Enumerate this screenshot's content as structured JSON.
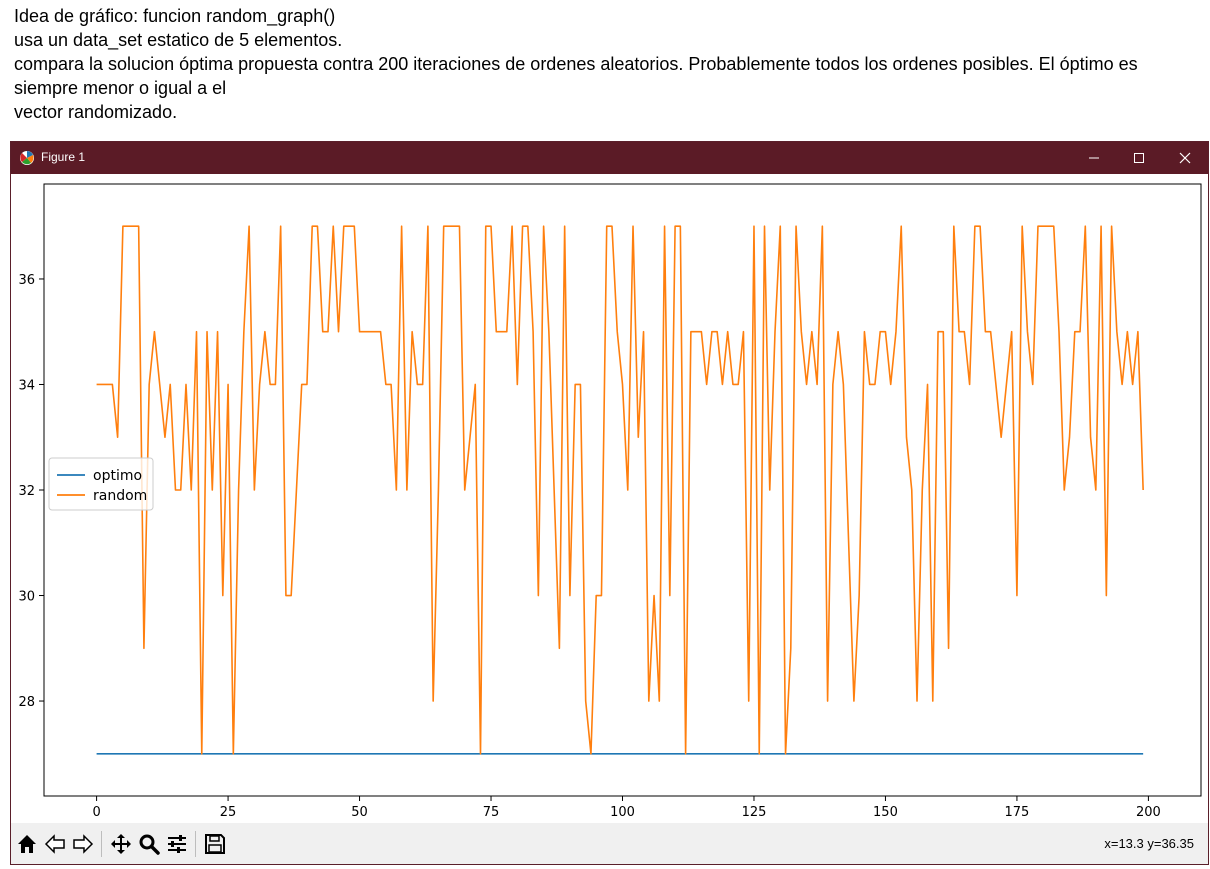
{
  "document": {
    "lines": [
      "Idea de gráfico: funcion random_graph()",
      "usa un data_set estatico de 5 elementos.",
      "compara la solucion óptima propuesta contra 200 iteraciones de ordenes aleatorios. Probablemente todos los ordenes posibles. El óptimo es siempre menor o igual a el",
      "vector randomizado."
    ]
  },
  "window": {
    "title": "Figure 1",
    "titlebar_color": "#5b1b26",
    "controls": [
      "minimize-icon",
      "maximize-icon",
      "close-icon"
    ]
  },
  "toolbar": {
    "buttons": [
      "home-icon",
      "back-arrow-icon",
      "forward-arrow-icon",
      "pan-icon",
      "zoom-icon",
      "subplots-icon",
      "save-icon"
    ],
    "coords": "x=13.3 y=36.35"
  },
  "chart_data": {
    "type": "line",
    "title": "",
    "xlabel": "",
    "ylabel": "",
    "xlim": [
      -10,
      210
    ],
    "ylim": [
      26.2,
      37.8
    ],
    "xticks": [
      0,
      25,
      50,
      75,
      100,
      125,
      150,
      175,
      200
    ],
    "yticks": [
      28,
      30,
      32,
      34,
      36
    ],
    "grid": false,
    "legend_position": "center-left",
    "series": [
      {
        "name": "optimo",
        "color": "#1f77b4",
        "x": [
          0,
          199
        ],
        "y": [
          27,
          27
        ]
      },
      {
        "name": "random",
        "color": "#ff7f0e",
        "y": [
          34,
          34,
          34,
          34,
          33,
          37,
          37,
          37,
          37,
          29,
          34,
          35,
          34,
          33,
          34,
          32,
          32,
          34,
          32,
          35,
          27,
          35,
          32,
          35,
          30,
          34,
          27,
          32,
          35,
          37,
          32,
          34,
          35,
          34,
          34,
          37,
          30,
          30,
          32,
          34,
          34,
          37,
          37,
          35,
          35,
          37,
          35,
          37,
          37,
          37,
          35,
          35,
          35,
          35,
          35,
          34,
          34,
          32,
          37,
          32,
          35,
          34,
          34,
          37,
          28,
          32,
          37,
          37,
          37,
          37,
          32,
          33,
          34,
          27,
          37,
          37,
          35,
          35,
          35,
          37,
          34,
          37,
          37,
          35,
          30,
          37,
          35,
          32,
          29,
          37,
          30,
          34,
          34,
          28,
          27,
          30,
          30,
          37,
          37,
          35,
          34,
          32,
          37,
          33,
          35,
          28,
          30,
          28,
          37,
          30,
          37,
          37,
          27,
          35,
          35,
          35,
          34,
          35,
          35,
          34,
          35,
          34,
          34,
          35,
          28,
          37,
          27,
          37,
          32,
          35,
          37,
          27,
          29,
          37,
          35,
          34,
          35,
          34,
          37,
          28,
          34,
          35,
          34,
          31,
          28,
          30,
          35,
          34,
          34,
          35,
          35,
          34,
          35,
          37,
          33,
          32,
          28,
          32,
          34,
          28,
          35,
          35,
          29,
          37,
          35,
          35,
          34,
          37,
          37,
          35,
          35,
          34,
          33,
          34,
          35,
          30,
          37,
          35,
          34,
          37,
          37,
          37,
          37,
          35,
          32,
          33,
          35,
          35,
          37,
          33,
          32,
          37,
          30,
          37,
          35,
          34,
          35,
          34,
          35,
          32
        ]
      }
    ]
  }
}
